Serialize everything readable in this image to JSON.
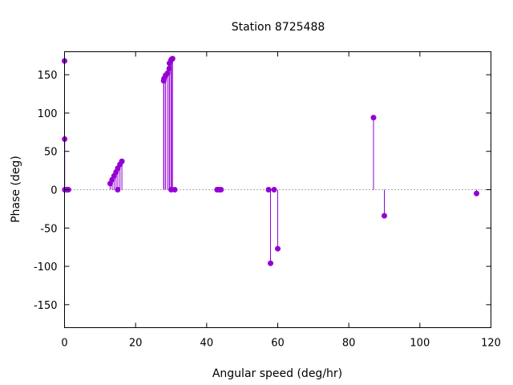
{
  "chart_data": {
    "type": "scatter",
    "title": "Station 8725488",
    "xlabel": "Angular speed (deg/hr)",
    "ylabel": "Phase (deg)",
    "xlim": [
      0,
      120
    ],
    "ylim": [
      -180,
      180
    ],
    "xticks": [
      0,
      20,
      40,
      60,
      80,
      100,
      120
    ],
    "yticks": [
      -150,
      -100,
      -50,
      0,
      50,
      100,
      150
    ],
    "grid": false,
    "zero_line": true,
    "style": "impulses-with-points",
    "color": "#9400d3",
    "series": [
      {
        "points": [
          {
            "x": 0.0,
            "y": 168
          },
          {
            "x": 0.04,
            "y": 66
          },
          {
            "x": 0.08,
            "y": 0
          },
          {
            "x": 0.55,
            "y": 0
          },
          {
            "x": 0.8,
            "y": 0
          },
          {
            "x": 1.1,
            "y": 0
          },
          {
            "x": 12.85,
            "y": 8
          },
          {
            "x": 13.4,
            "y": 13
          },
          {
            "x": 13.95,
            "y": 18
          },
          {
            "x": 14.5,
            "y": 23
          },
          {
            "x": 14.96,
            "y": 0
          },
          {
            "x": 15.0,
            "y": 28
          },
          {
            "x": 15.6,
            "y": 33
          },
          {
            "x": 16.14,
            "y": 37
          },
          {
            "x": 27.9,
            "y": 142
          },
          {
            "x": 28.0,
            "y": 145
          },
          {
            "x": 28.44,
            "y": 149
          },
          {
            "x": 28.99,
            "y": 152
          },
          {
            "x": 29.46,
            "y": 158
          },
          {
            "x": 29.53,
            "y": 165
          },
          {
            "x": 29.96,
            "y": 169
          },
          {
            "x": 30.0,
            "y": 0
          },
          {
            "x": 30.1,
            "y": 170
          },
          {
            "x": 30.4,
            "y": 171
          },
          {
            "x": 31.02,
            "y": 0
          },
          {
            "x": 42.93,
            "y": 0
          },
          {
            "x": 43.48,
            "y": 0
          },
          {
            "x": 44.03,
            "y": 0
          },
          {
            "x": 57.42,
            "y": 0
          },
          {
            "x": 57.97,
            "y": -96
          },
          {
            "x": 58.98,
            "y": 0
          },
          {
            "x": 60.0,
            "y": -77
          },
          {
            "x": 86.95,
            "y": 94
          },
          {
            "x": 90.0,
            "y": -34
          },
          {
            "x": 115.94,
            "y": -5
          }
        ]
      }
    ]
  }
}
